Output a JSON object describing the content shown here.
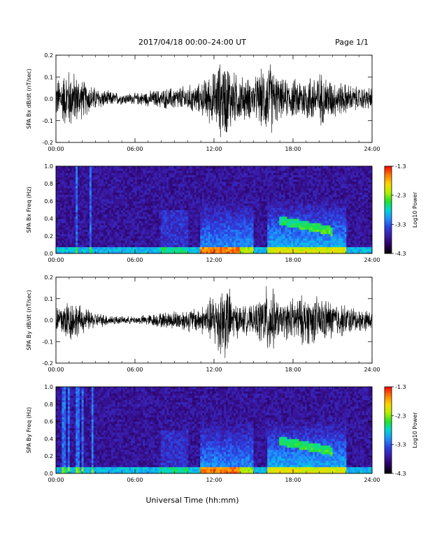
{
  "header": {
    "title": "2017/04/18  00:00–24:00 UT",
    "page_label": "Page 1/1"
  },
  "footer": {
    "xlabel": "Universal Time (hh:mm)"
  },
  "colorbar": {
    "label": "Log10 Power",
    "ticks": [
      "-1.3",
      "-2.3",
      "-3.3",
      "-4.3"
    ],
    "range": [
      -4.3,
      -1.3
    ],
    "colors": [
      "#000000",
      "#2b0060",
      "#3a1aa6",
      "#2e3fe0",
      "#1f8fff",
      "#00d6d6",
      "#22e22a",
      "#b8f000",
      "#ffd400",
      "#ff7a00",
      "#ff0000"
    ]
  },
  "chart_data": [
    {
      "type": "line",
      "ylabel": "SPA Bx dB/dt (nT/sec)",
      "x_ticks": [
        "00:00",
        "06:00",
        "12:00",
        "18:00",
        "24:00"
      ],
      "y_ticks": [
        "0.2",
        "0.1",
        "0.0",
        "-0.1",
        "-0.2"
      ],
      "xlim": [
        0,
        24
      ],
      "ylim": [
        -0.2,
        0.2
      ],
      "series": [
        {
          "x": [
            0,
            1,
            2,
            3,
            4,
            5,
            6,
            7,
            8,
            9,
            10,
            11,
            11.5,
            12,
            12.5,
            13,
            13.5,
            14,
            15,
            16.2,
            17,
            18,
            19,
            20,
            21,
            22,
            23,
            24
          ],
          "values": [
            0.1,
            0.16,
            0.1,
            0.06,
            0.04,
            0.03,
            0.03,
            0.04,
            0.05,
            0.06,
            0.07,
            0.08,
            0.12,
            0.14,
            0.2,
            0.2,
            0.14,
            0.12,
            0.1,
            0.2,
            0.1,
            0.1,
            0.12,
            0.14,
            0.1,
            0.08,
            0.06,
            0.06
          ]
        }
      ]
    },
    {
      "type": "heatmap",
      "ylabel": "SPA Bx Freq (Hz)",
      "x_ticks": [
        "00:00",
        "06:00",
        "12:00",
        "18:00",
        "24:00"
      ],
      "y_ticks": [
        "1.0",
        "0.8",
        "0.6",
        "0.4",
        "0.2",
        "0.0"
      ],
      "xlim": [
        0,
        24
      ],
      "ylim": [
        0,
        1.0
      ],
      "z_range": [
        -4.3,
        -1.3
      ]
    },
    {
      "type": "line",
      "ylabel": "SPA By dB/dt (nT/sec)",
      "x_ticks": [
        "00:00",
        "06:00",
        "12:00",
        "18:00",
        "24:00"
      ],
      "y_ticks": [
        "0.2",
        "0.1",
        "0.0",
        "-0.1",
        "-0.2"
      ],
      "xlim": [
        0,
        24
      ],
      "ylim": [
        -0.2,
        0.2
      ],
      "series": [
        {
          "x": [
            0,
            1,
            2,
            3,
            4,
            5,
            6,
            7,
            8,
            9,
            10,
            11,
            11.5,
            12,
            12.5,
            13,
            13.5,
            14,
            15,
            16.2,
            17,
            18,
            19,
            20,
            21,
            22,
            23,
            24
          ],
          "values": [
            0.08,
            0.12,
            0.07,
            0.04,
            0.03,
            0.02,
            0.02,
            0.03,
            0.04,
            0.05,
            0.06,
            0.07,
            0.1,
            0.14,
            0.2,
            0.2,
            0.1,
            0.08,
            0.07,
            0.2,
            0.08,
            0.12,
            0.13,
            0.12,
            0.1,
            0.08,
            0.06,
            0.05
          ]
        }
      ]
    },
    {
      "type": "heatmap",
      "ylabel": "SPA By Freq (Hz)",
      "x_ticks": [
        "00:00",
        "06:00",
        "12:00",
        "18:00",
        "24:00"
      ],
      "y_ticks": [
        "1.0",
        "0.8",
        "0.6",
        "0.4",
        "0.2",
        "0.0"
      ],
      "xlim": [
        0,
        24
      ],
      "ylim": [
        0,
        1.0
      ],
      "z_range": [
        -4.3,
        -1.3
      ]
    }
  ]
}
